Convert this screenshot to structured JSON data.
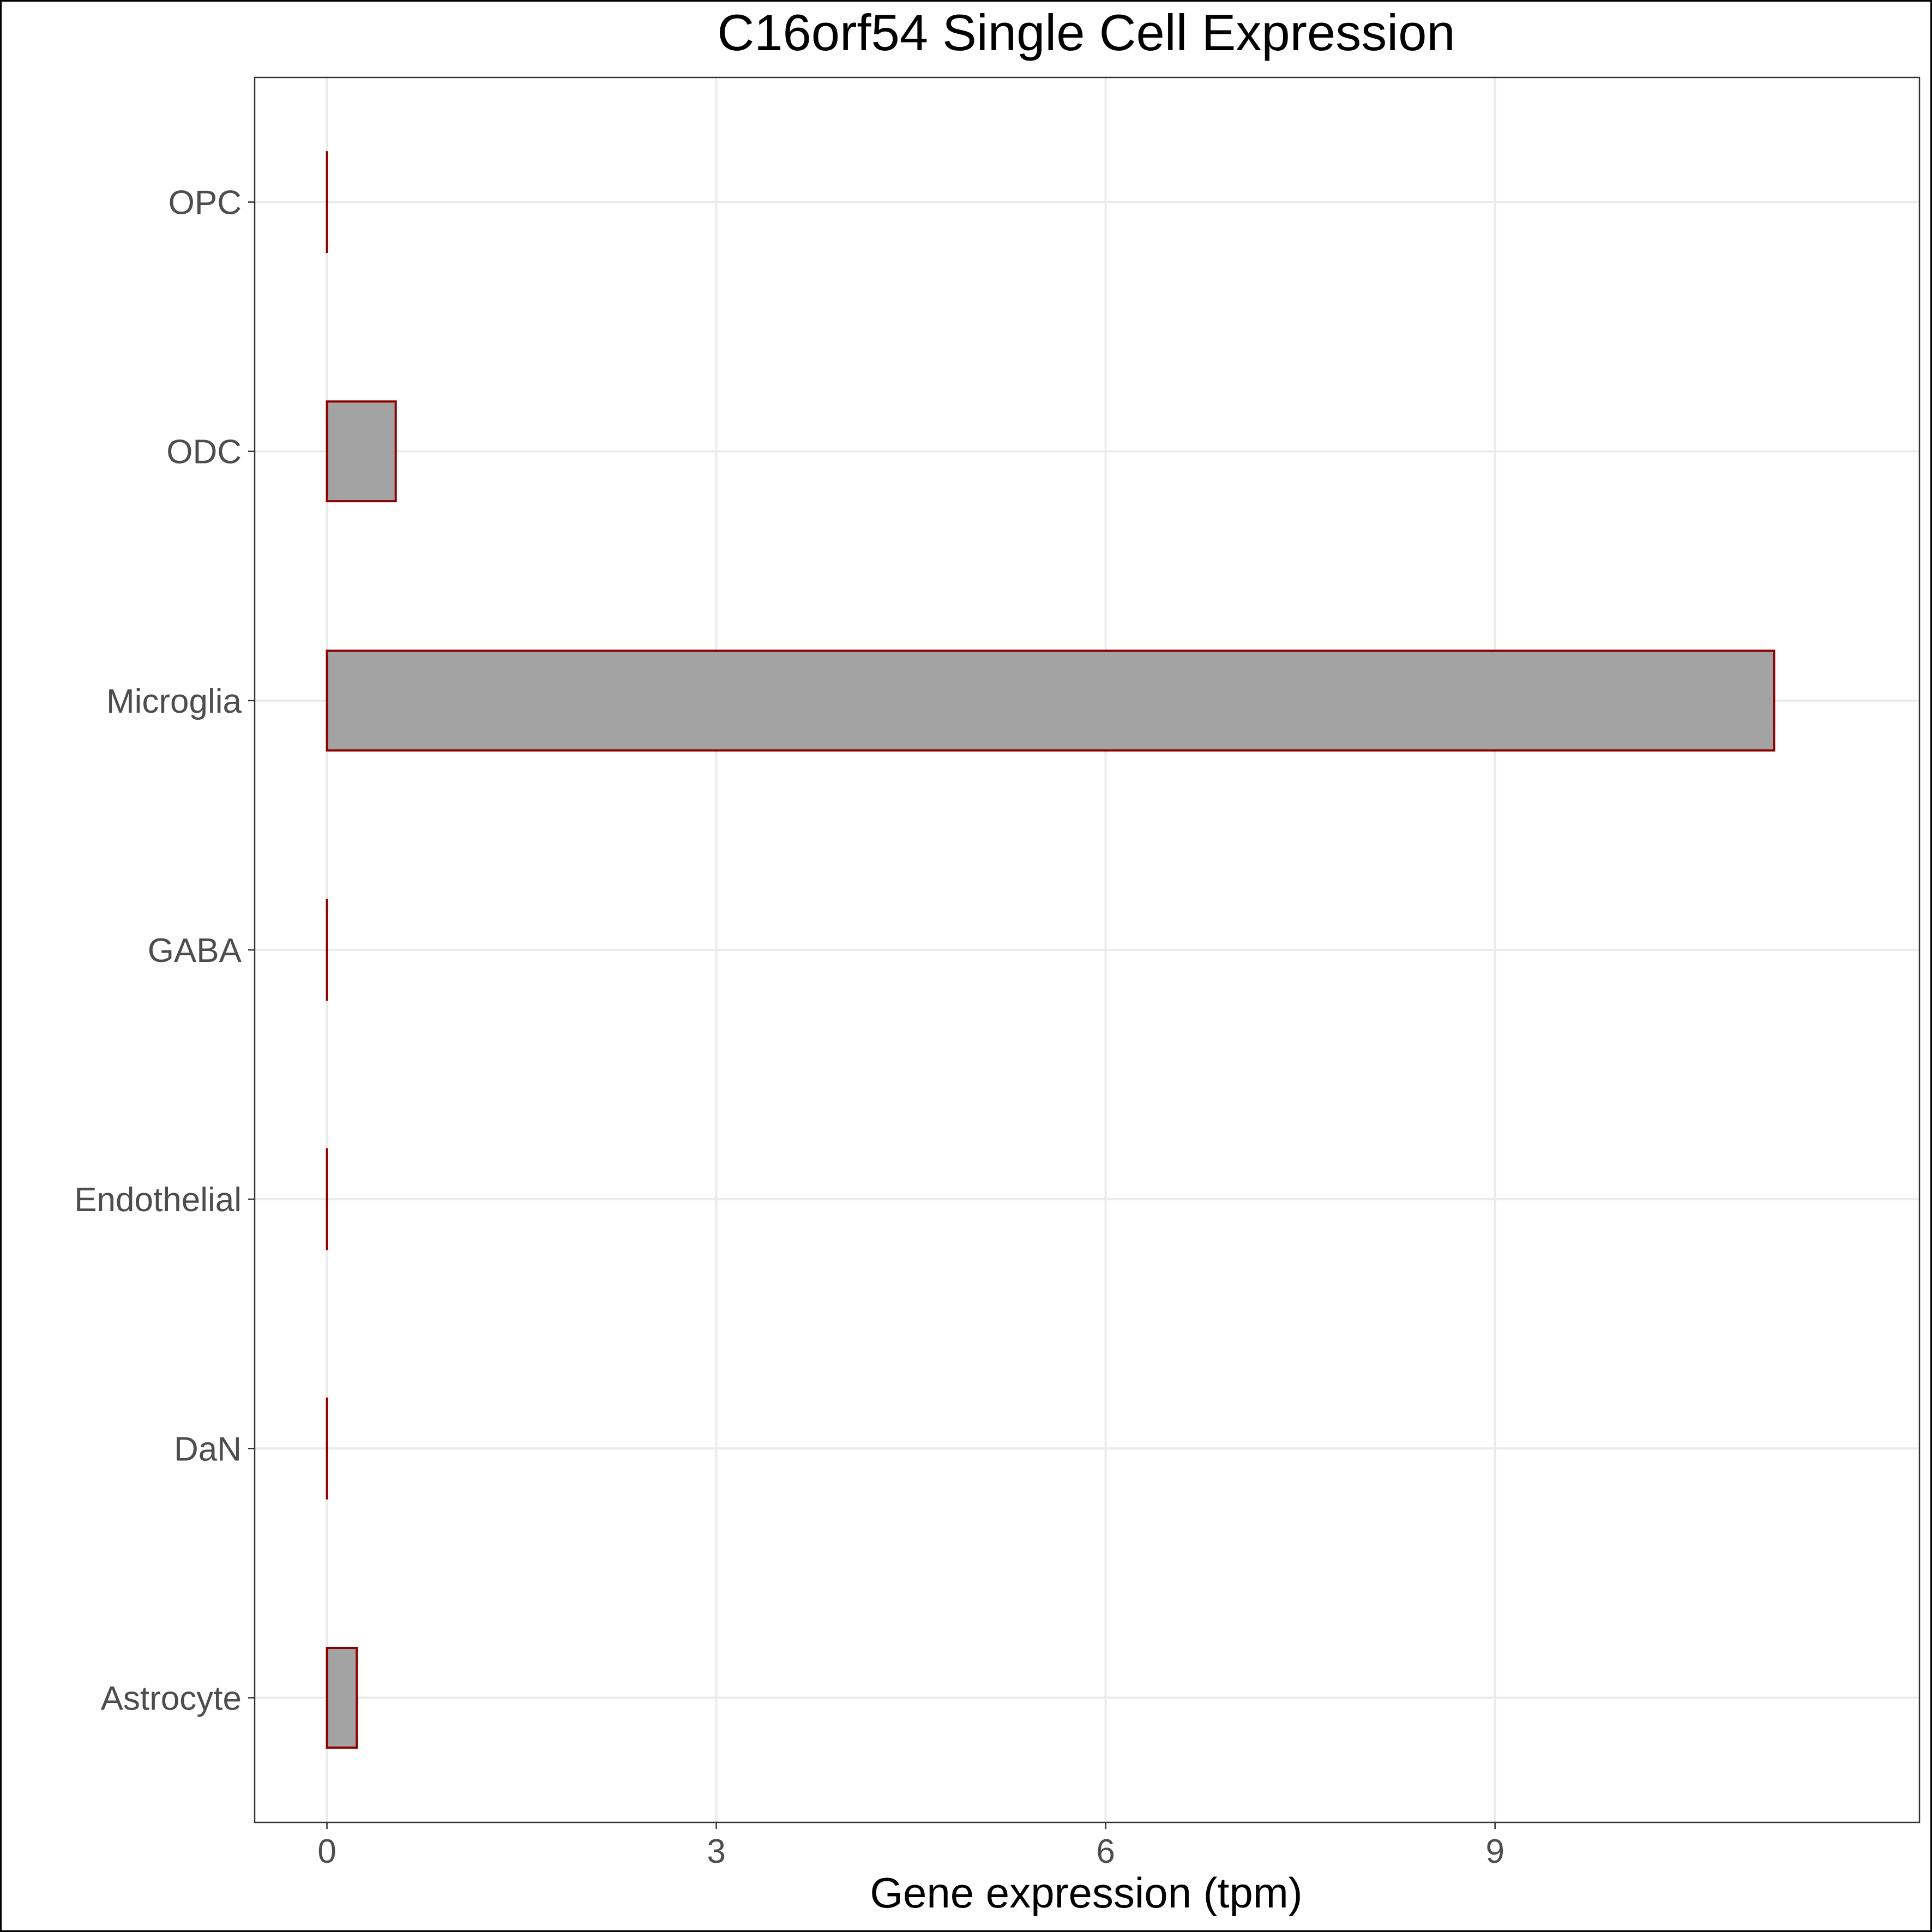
{
  "chart_data": {
    "type": "bar",
    "orientation": "horizontal",
    "title": "C16orf54 Single Cell Expression",
    "xlabel": "Gene expression (tpm)",
    "ylabel": "",
    "categories": [
      "Astrocyte",
      "DaN",
      "Endothelial",
      "GABA",
      "Microglia",
      "ODC",
      "OPC"
    ],
    "values": [
      0.23,
      0.0,
      0.0,
      0.0,
      11.15,
      0.53,
      0.0
    ],
    "xlim": [
      -0.557,
      12.27
    ],
    "xticks": [
      0,
      3,
      6,
      9
    ],
    "grid": true,
    "legend": "none",
    "colors": {
      "bar_fill": "#a3a3a3",
      "bar_outline": "#8b0000",
      "grid": "#ebebeb",
      "tick_text": "#4d4d4d"
    }
  }
}
